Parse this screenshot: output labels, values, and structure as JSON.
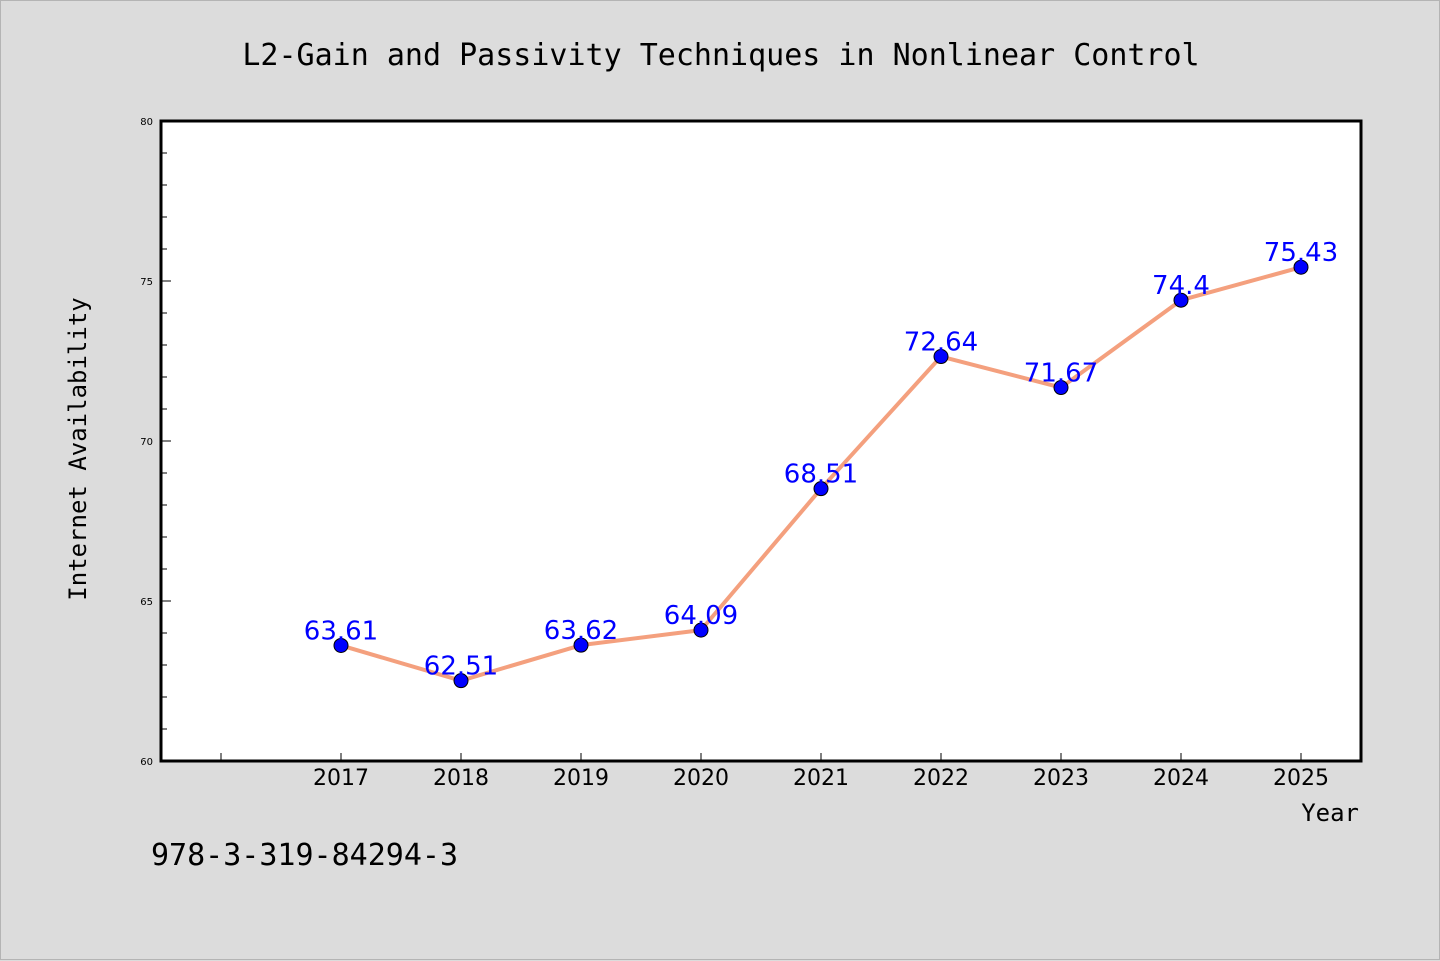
{
  "chart_data": {
    "type": "line",
    "title": "L2-Gain and Passivity Techniques in Nonlinear Control",
    "xlabel": "Year",
    "ylabel": "Internet Availability",
    "categories": [
      "2017",
      "2018",
      "2019",
      "2020",
      "2021",
      "2022",
      "2023",
      "2024",
      "2025"
    ],
    "series": [
      {
        "values": [
          63.61,
          62.51,
          63.62,
          64.09,
          68.51,
          72.64,
          71.67,
          74.4,
          75.43
        ],
        "data_labels": [
          "63.61",
          "62.51",
          "63.62",
          "64.09",
          "68.51",
          "72.64",
          "71.67",
          "74.4",
          "75.43"
        ]
      }
    ],
    "ylim": [
      60,
      80
    ],
    "yticks": [
      "60",
      "65",
      "70",
      "75",
      "80"
    ],
    "grid": false,
    "legend": "none",
    "colors": {
      "line": "#f4a07e",
      "marker": "#0000ff",
      "data_label": "#0000ff",
      "plot_bg": "#ffffff",
      "page_bg": "#dcdcdc"
    }
  },
  "footnote": "978-3-319-84294-3"
}
